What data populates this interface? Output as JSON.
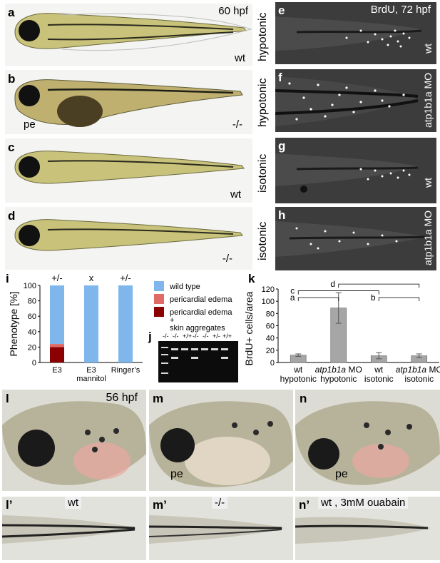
{
  "panels": {
    "a": {
      "letter": "a",
      "label": "60 hpf",
      "genotype": "wt"
    },
    "b": {
      "letter": "b",
      "genotype": "-/-",
      "annotation": "pe"
    },
    "c": {
      "letter": "c",
      "genotype": "wt"
    },
    "d": {
      "letter": "d",
      "genotype": "-/-"
    },
    "e": {
      "letter": "e",
      "condition": "hypotonic",
      "label": "BrdU, 72 hpf",
      "genotype": "wt"
    },
    "f": {
      "letter": "f",
      "condition": "hypotonic",
      "genotype": "atp1b1a MO"
    },
    "g": {
      "letter": "g",
      "condition": "isotonic",
      "genotype": "wt"
    },
    "h": {
      "letter": "h",
      "condition": "isotonic",
      "genotype": "atp1b1a MO"
    },
    "i": {
      "letter": "i"
    },
    "j": {
      "letter": "j",
      "lanes": [
        "-/-",
        "-/-",
        "+/+",
        "-/-",
        "-/-",
        "+/-",
        "+/+"
      ]
    },
    "k": {
      "letter": "k"
    },
    "l": {
      "letter": "l",
      "label": "56 hpf"
    },
    "m": {
      "letter": "m",
      "annotation": "pe"
    },
    "n": {
      "letter": "n",
      "annotation": "pe"
    },
    "l_prime": {
      "letter": "l’",
      "label": "wt"
    },
    "m_prime": {
      "letter": "m’",
      "label": "-/-"
    },
    "n_prime": {
      "letter": "n’",
      "label": "wt , 3mM ouabain"
    }
  },
  "chart_data": [
    {
      "type": "bar",
      "stacked": true,
      "ylabel": "Phenotype [%]",
      "ylim": [
        0,
        100
      ],
      "yticks": [
        0,
        20,
        40,
        60,
        80,
        100
      ],
      "categories": [
        "E3",
        "E3\nmannitol",
        "Ringer’s"
      ],
      "category_lines": [
        [
          "E3"
        ],
        [
          "E3",
          "mannitol"
        ],
        [
          "Ringer’s"
        ]
      ],
      "top_labels": [
        "+/-",
        "x",
        "+/-"
      ],
      "series": [
        {
          "name": "pericardial edema + skin aggregates",
          "values": [
            20,
            0,
            0
          ],
          "color": "#8b0000"
        },
        {
          "name": "pericardial edema",
          "values": [
            4,
            0,
            0
          ],
          "color": "#e06a66"
        },
        {
          "name": "wild type",
          "values": [
            76,
            100,
            100
          ],
          "color": "#7fb7ec"
        }
      ],
      "legend": [
        {
          "text": "wild type",
          "color": "#7fb7ec"
        },
        {
          "text": "pericardial edema",
          "color": "#e06a66"
        },
        {
          "text": "pericardial edema\n+\nskin aggregates",
          "color": "#8b0000"
        }
      ]
    },
    {
      "type": "bar",
      "ylabel": "BrdU+ cells/area",
      "ylim": [
        0,
        120
      ],
      "yticks": [
        0,
        20,
        40,
        60,
        80,
        100,
        120
      ],
      "categories": [
        {
          "line1": "wt",
          "line2": "hypotonic",
          "italic": false
        },
        {
          "line1": "atp1b1a",
          "line1b": " MO",
          "line2": "hypotonic",
          "italic": true
        },
        {
          "line1": "wt",
          "line2": "isotonic",
          "italic": false
        },
        {
          "line1": "atp1b1a",
          "line1b": " MO",
          "line2": "isotonic",
          "italic": true
        }
      ],
      "values": [
        12,
        89,
        11,
        11
      ],
      "errors": [
        2,
        25,
        5,
        3
      ],
      "bar_color": "#a6a6a6",
      "significance": [
        {
          "label": "a",
          "from": 0,
          "to": 1,
          "level": 106
        },
        {
          "label": "b",
          "from": 2,
          "to": 3,
          "level": 106
        },
        {
          "label": "c",
          "from": 0,
          "to": 2,
          "level": 117
        },
        {
          "label": "d",
          "from": 1,
          "to": 3,
          "level": 128
        }
      ]
    }
  ]
}
